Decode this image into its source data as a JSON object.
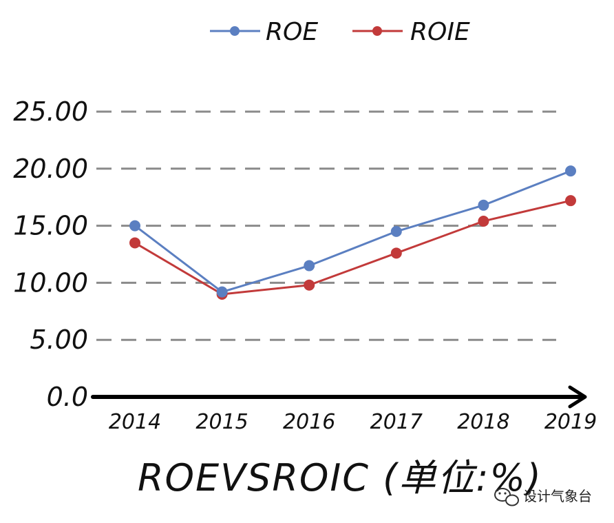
{
  "chart_data": {
    "type": "line",
    "title": "ROEVSROIC (单位:%)",
    "xlabel": "",
    "ylabel": "",
    "categories": [
      "2014",
      "2015",
      "2016",
      "2017",
      "2018",
      "2019"
    ],
    "y_ticks": [
      "0.0",
      "5.00",
      "10.00",
      "15.00",
      "20.00",
      "25.00"
    ],
    "y_tick_values": [
      0,
      5,
      10,
      15,
      20,
      25
    ],
    "ylim": [
      0,
      25
    ],
    "grid": true,
    "legend_position": "top",
    "series": [
      {
        "name": "ROE",
        "color": "#5b7fc1",
        "values": [
          15.0,
          9.2,
          11.5,
          14.5,
          16.8,
          19.8
        ]
      },
      {
        "name": "ROIE",
        "color": "#c23a3a",
        "values": [
          13.5,
          9.0,
          9.8,
          12.6,
          15.4,
          17.2
        ]
      }
    ]
  },
  "watermark": {
    "icon": "wechat-icon",
    "text": "设计气象台"
  }
}
